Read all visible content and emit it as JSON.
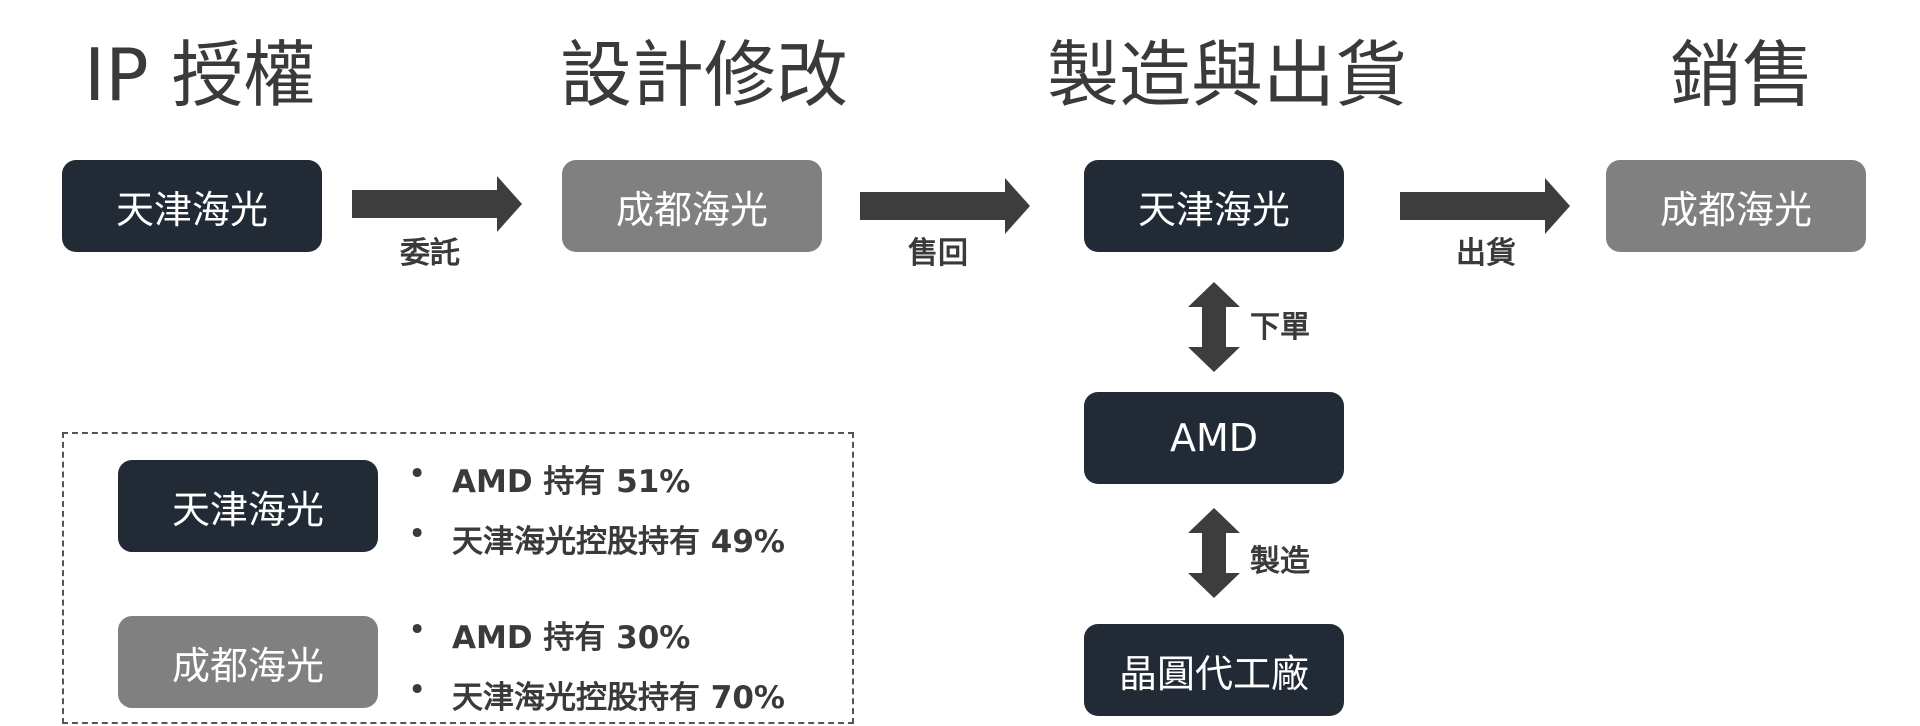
{
  "stages": {
    "ip": "IP 授權",
    "design": "設計修改",
    "manufacturing": "製造與出貨",
    "sales": "銷售"
  },
  "boxes": {
    "tianjin_1": "天津海光",
    "chengdu_1": "成都海光",
    "tianjin_2": "天津海光",
    "chengdu_2": "成都海光",
    "amd": "AMD",
    "foundry": "晶圓代工廠"
  },
  "flow_labels": {
    "commission": "委託",
    "sell_back": "售回",
    "ship": "出貨",
    "order": "下單",
    "manufacture": "製造"
  },
  "legend": {
    "tianjin": {
      "label": "天津海光",
      "bullets": [
        "AMD 持有 51%",
        "天津海光控股持有 49%"
      ]
    },
    "chengdu": {
      "label": "成都海光",
      "bullets": [
        "AMD 持有 30%",
        "天津海光控股持有 70%"
      ]
    }
  },
  "colors": {
    "dark_box": "#222a35",
    "gray_box": "#808080",
    "arrow": "#3d3d3d"
  }
}
